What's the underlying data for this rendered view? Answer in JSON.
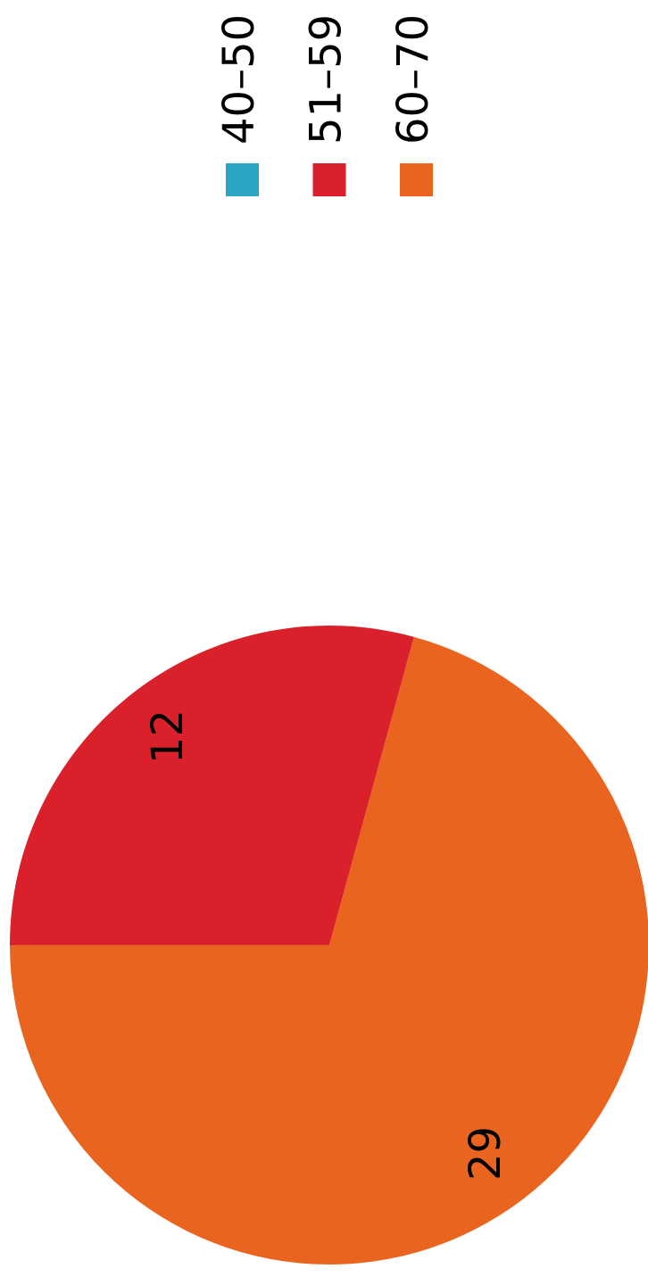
{
  "chart_data": {
    "type": "pie",
    "categories": [
      "40–50",
      "51–59",
      "60–70"
    ],
    "values": [
      0,
      12,
      29
    ],
    "colors": [
      "#2aa3c4",
      "#da202a",
      "#e9641f"
    ]
  }
}
